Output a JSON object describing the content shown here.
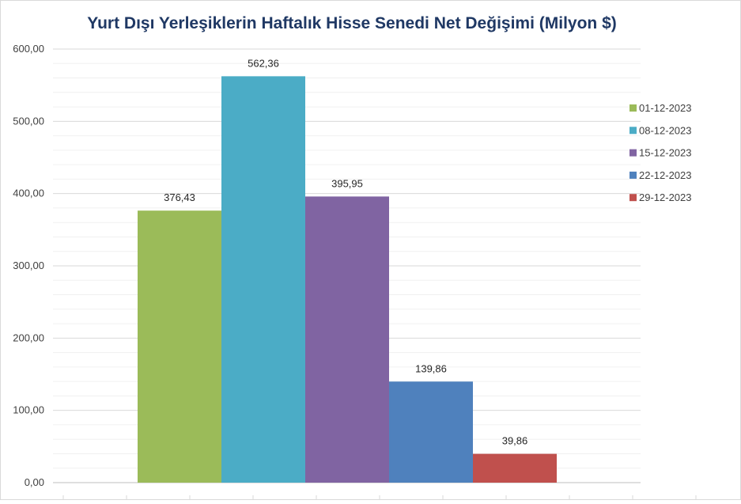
{
  "chart_data": {
    "type": "bar",
    "title": "Yurt Dışı Yerleşiklerin Haftalık Hisse Senedi Net Değişimi (Milyon $)",
    "xlabel": "",
    "ylabel": "",
    "ylim": [
      0,
      600
    ],
    "yticks": [
      "0,00",
      "100,00",
      "200,00",
      "300,00",
      "400,00",
      "500,00",
      "600,00"
    ],
    "grid": true,
    "legend_position": "right",
    "title_color": "#1f3864",
    "series": [
      {
        "name": "01-12-2023",
        "value": 376.43,
        "label": "376,43",
        "color": "#9bbb59"
      },
      {
        "name": "08-12-2023",
        "value": 562.36,
        "label": "562,36",
        "color": "#4bacc6"
      },
      {
        "name": "15-12-2023",
        "value": 395.95,
        "label": "395,95",
        "color": "#8064a2"
      },
      {
        "name": "22-12-2023",
        "value": 139.86,
        "label": "139,86",
        "color": "#4f81bd"
      },
      {
        "name": "29-12-2023",
        "value": 39.86,
        "label": "39,86",
        "color": "#c0504d"
      }
    ]
  }
}
